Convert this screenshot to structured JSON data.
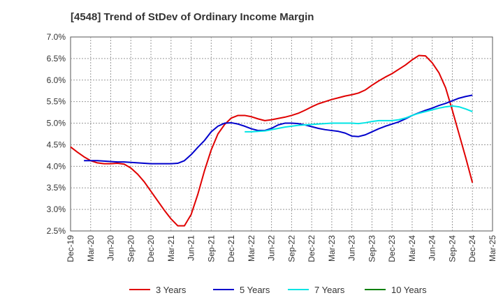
{
  "chart_data": {
    "type": "line",
    "title": "[4548]  Trend of StDev of Ordinary Income Margin",
    "xlabel": "",
    "ylabel": "",
    "x_tick_labels": [
      "Dec-19",
      "Mar-20",
      "Jun-20",
      "Sep-20",
      "Dec-20",
      "Mar-21",
      "Jun-21",
      "Sep-21",
      "Dec-21",
      "Mar-22",
      "Jun-22",
      "Sep-22",
      "Dec-22",
      "Mar-23",
      "Jun-23",
      "Sep-23",
      "Dec-23",
      "Mar-24",
      "Jun-24",
      "Sep-24",
      "Dec-24",
      "Mar-25"
    ],
    "y_tick_labels": [
      "7.0%",
      "6.5%",
      "6.0%",
      "5.5%",
      "5.0%",
      "4.5%",
      "4.0%",
      "3.5%",
      "3.0%",
      "2.5%"
    ],
    "ylim": [
      2.5,
      7.0
    ],
    "grid": true,
    "legend_position": "bottom",
    "series": [
      {
        "name": "3 Years",
        "color": "#e00000",
        "points": [
          [
            "Dec-19",
            4.45
          ],
          [
            "Jan-20",
            4.33
          ],
          [
            "Feb-20",
            4.22
          ],
          [
            "Mar-20",
            4.13
          ],
          [
            "Apr-20",
            4.08
          ],
          [
            "May-20",
            4.06
          ],
          [
            "Jun-20",
            4.06
          ],
          [
            "Jul-20",
            4.07
          ],
          [
            "Aug-20",
            4.05
          ],
          [
            "Sep-20",
            3.96
          ],
          [
            "Oct-20",
            3.82
          ],
          [
            "Nov-20",
            3.64
          ],
          [
            "Dec-20",
            3.42
          ],
          [
            "Jan-21",
            3.2
          ],
          [
            "Feb-21",
            2.98
          ],
          [
            "Mar-21",
            2.78
          ],
          [
            "Apr-21",
            2.62
          ],
          [
            "May-21",
            2.62
          ],
          [
            "Jun-21",
            2.88
          ],
          [
            "Jul-21",
            3.35
          ],
          [
            "Aug-21",
            3.9
          ],
          [
            "Sep-21",
            4.38
          ],
          [
            "Oct-21",
            4.75
          ],
          [
            "Nov-21",
            4.97
          ],
          [
            "Dec-21",
            5.12
          ],
          [
            "Jan-22",
            5.18
          ],
          [
            "Feb-22",
            5.18
          ],
          [
            "Mar-22",
            5.15
          ],
          [
            "Apr-22",
            5.1
          ],
          [
            "May-22",
            5.06
          ],
          [
            "Jun-22",
            5.08
          ],
          [
            "Jul-22",
            5.11
          ],
          [
            "Aug-22",
            5.14
          ],
          [
            "Sep-22",
            5.18
          ],
          [
            "Oct-22",
            5.23
          ],
          [
            "Nov-22",
            5.3
          ],
          [
            "Dec-22",
            5.38
          ],
          [
            "Jan-23",
            5.45
          ],
          [
            "Feb-23",
            5.5
          ],
          [
            "Mar-23",
            5.55
          ],
          [
            "Apr-23",
            5.59
          ],
          [
            "May-23",
            5.63
          ],
          [
            "Jun-23",
            5.66
          ],
          [
            "Jul-23",
            5.7
          ],
          [
            "Aug-23",
            5.77
          ],
          [
            "Sep-23",
            5.88
          ],
          [
            "Oct-23",
            5.98
          ],
          [
            "Nov-23",
            6.07
          ],
          [
            "Dec-23",
            6.15
          ],
          [
            "Jan-24",
            6.25
          ],
          [
            "Feb-24",
            6.35
          ],
          [
            "Mar-24",
            6.47
          ],
          [
            "Apr-24",
            6.57
          ],
          [
            "May-24",
            6.56
          ],
          [
            "Jun-24",
            6.4
          ],
          [
            "Jul-24",
            6.17
          ],
          [
            "Aug-24",
            5.82
          ],
          [
            "Sep-24",
            5.3
          ],
          [
            "Oct-24",
            4.75
          ],
          [
            "Nov-24",
            4.2
          ],
          [
            "Dec-24",
            3.62
          ]
        ]
      },
      {
        "name": "5 Years",
        "color": "#0000cc",
        "points": [
          [
            "Feb-20",
            4.13
          ],
          [
            "Mar-20",
            4.13
          ],
          [
            "Apr-20",
            4.13
          ],
          [
            "May-20",
            4.12
          ],
          [
            "Jun-20",
            4.11
          ],
          [
            "Jul-20",
            4.1
          ],
          [
            "Aug-20",
            4.1
          ],
          [
            "Sep-20",
            4.09
          ],
          [
            "Oct-20",
            4.08
          ],
          [
            "Nov-20",
            4.07
          ],
          [
            "Dec-20",
            4.06
          ],
          [
            "Jan-21",
            4.06
          ],
          [
            "Feb-21",
            4.06
          ],
          [
            "Mar-21",
            4.06
          ],
          [
            "Apr-21",
            4.07
          ],
          [
            "May-21",
            4.13
          ],
          [
            "Jun-21",
            4.27
          ],
          [
            "Jul-21",
            4.44
          ],
          [
            "Aug-21",
            4.6
          ],
          [
            "Sep-21",
            4.8
          ],
          [
            "Oct-21",
            4.93
          ],
          [
            "Nov-21",
            5.0
          ],
          [
            "Dec-21",
            5.01
          ],
          [
            "Jan-22",
            4.98
          ],
          [
            "Feb-22",
            4.93
          ],
          [
            "Mar-22",
            4.87
          ],
          [
            "Apr-22",
            4.83
          ],
          [
            "May-22",
            4.83
          ],
          [
            "Jun-22",
            4.88
          ],
          [
            "Jul-22",
            4.96
          ],
          [
            "Aug-22",
            5.0
          ],
          [
            "Sep-22",
            5.0
          ],
          [
            "Oct-22",
            4.99
          ],
          [
            "Nov-22",
            4.96
          ],
          [
            "Dec-22",
            4.92
          ],
          [
            "Jan-23",
            4.88
          ],
          [
            "Feb-23",
            4.85
          ],
          [
            "Mar-23",
            4.83
          ],
          [
            "Apr-23",
            4.81
          ],
          [
            "May-23",
            4.77
          ],
          [
            "Jun-23",
            4.7
          ],
          [
            "Jul-23",
            4.69
          ],
          [
            "Aug-23",
            4.73
          ],
          [
            "Sep-23",
            4.8
          ],
          [
            "Oct-23",
            4.87
          ],
          [
            "Nov-23",
            4.93
          ],
          [
            "Dec-23",
            4.98
          ],
          [
            "Jan-24",
            5.03
          ],
          [
            "Feb-24",
            5.1
          ],
          [
            "Mar-24",
            5.18
          ],
          [
            "Apr-24",
            5.24
          ],
          [
            "May-24",
            5.3
          ],
          [
            "Jun-24",
            5.35
          ],
          [
            "Jul-24",
            5.41
          ],
          [
            "Aug-24",
            5.46
          ],
          [
            "Sep-24",
            5.52
          ],
          [
            "Oct-24",
            5.58
          ],
          [
            "Nov-24",
            5.62
          ],
          [
            "Dec-24",
            5.65
          ]
        ]
      },
      {
        "name": "7 Years",
        "color": "#00e5e5",
        "points": [
          [
            "Feb-22",
            4.8
          ],
          [
            "Mar-22",
            4.8
          ],
          [
            "Apr-22",
            4.81
          ],
          [
            "May-22",
            4.82
          ],
          [
            "Jun-22",
            4.85
          ],
          [
            "Jul-22",
            4.88
          ],
          [
            "Aug-22",
            4.91
          ],
          [
            "Sep-22",
            4.93
          ],
          [
            "Oct-22",
            4.95
          ],
          [
            "Nov-22",
            4.96
          ],
          [
            "Dec-22",
            4.97
          ],
          [
            "Jan-23",
            4.98
          ],
          [
            "Feb-23",
            4.99
          ],
          [
            "Mar-23",
            5.0
          ],
          [
            "Apr-23",
            5.0
          ],
          [
            "May-23",
            5.0
          ],
          [
            "Jun-23",
            5.0
          ],
          [
            "Jul-23",
            4.99
          ],
          [
            "Aug-23",
            5.01
          ],
          [
            "Sep-23",
            5.04
          ],
          [
            "Oct-23",
            5.06
          ],
          [
            "Nov-23",
            5.06
          ],
          [
            "Dec-23",
            5.06
          ],
          [
            "Jan-24",
            5.08
          ],
          [
            "Feb-24",
            5.12
          ],
          [
            "Mar-24",
            5.18
          ],
          [
            "Apr-24",
            5.23
          ],
          [
            "May-24",
            5.27
          ],
          [
            "Jun-24",
            5.31
          ],
          [
            "Jul-24",
            5.35
          ],
          [
            "Aug-24",
            5.38
          ],
          [
            "Sep-24",
            5.4
          ],
          [
            "Oct-24",
            5.38
          ],
          [
            "Nov-24",
            5.33
          ],
          [
            "Dec-24",
            5.27
          ]
        ]
      },
      {
        "name": "10 Years",
        "color": "#008000",
        "points": []
      }
    ]
  }
}
